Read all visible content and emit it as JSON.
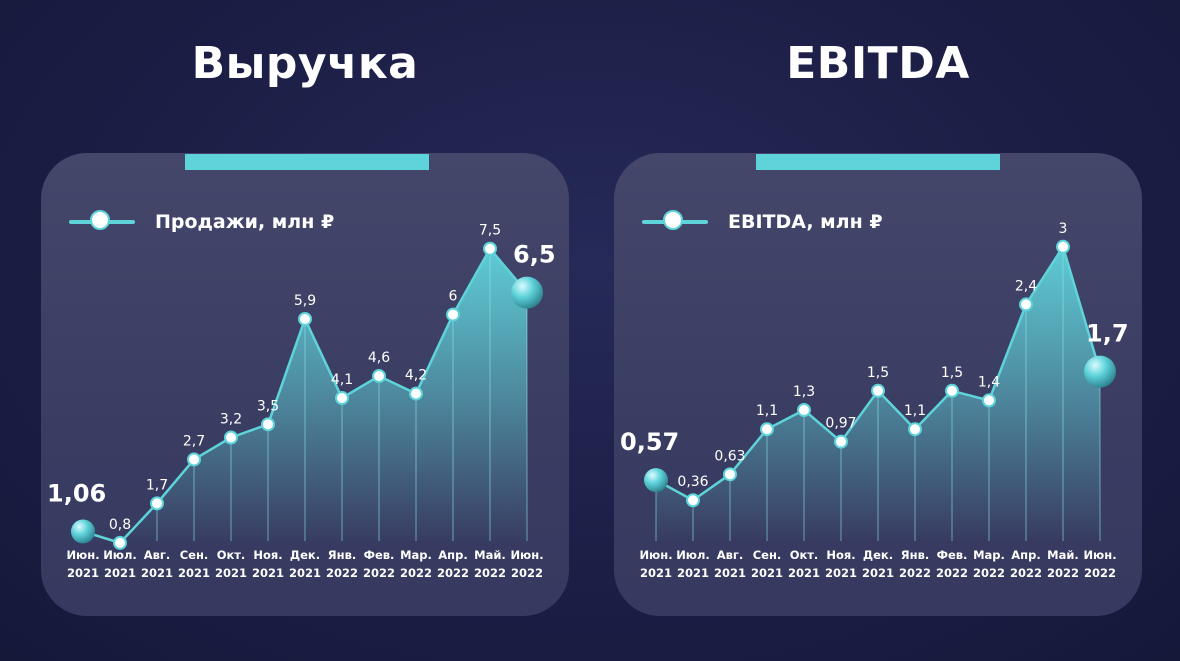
{
  "colors": {
    "background": "#1b1d44",
    "card": "#3e4166",
    "accent": "#5fd3da",
    "line": "#5fd3da",
    "point_fill": "#ffffff",
    "text": "#ffffff"
  },
  "chart_data": [
    {
      "type": "area",
      "title": "Выручка",
      "legend_position": "top-left",
      "grid": false,
      "highlight_first": true,
      "highlight_last": true,
      "categories": [
        "Июн. 2021",
        "Июл. 2021",
        "Авг. 2021",
        "Сен. 2021",
        "Окт. 2021",
        "Ноя. 2021",
        "Дек. 2021",
        "Янв. 2022",
        "Фев. 2022",
        "Мар. 2022",
        "Апр. 2022",
        "Май. 2022",
        "Июн. 2022"
      ],
      "tick_labels": [
        [
          "Июн.",
          "2021"
        ],
        [
          "Июл.",
          "2021"
        ],
        [
          "Авг.",
          "2021"
        ],
        [
          "Сен.",
          "2021"
        ],
        [
          "Окт.",
          "2021"
        ],
        [
          "Ноя.",
          "2021"
        ],
        [
          "Дек.",
          "2021"
        ],
        [
          "Янв.",
          "2022"
        ],
        [
          "Фев.",
          "2022"
        ],
        [
          "Мар.",
          "2022"
        ],
        [
          "Апр.",
          "2022"
        ],
        [
          "Май.",
          "2022"
        ],
        [
          "Июн.",
          "2022"
        ]
      ],
      "series": [
        {
          "name": "Продажи, млн ₽",
          "values": [
            1.06,
            0.8,
            1.7,
            2.7,
            3.2,
            3.5,
            5.9,
            4.1,
            4.6,
            4.2,
            6,
            7.5,
            6.5
          ],
          "labels": [
            "1,06",
            "0,8",
            "1,7",
            "2,7",
            "3,2",
            "3,5",
            "5,9",
            "4,1",
            "4,6",
            "4,2",
            "6",
            "7,5",
            "6,5"
          ]
        }
      ],
      "ylim": [
        0,
        8.2
      ]
    },
    {
      "type": "area",
      "title": "EBITDA",
      "legend_position": "top-left",
      "grid": false,
      "highlight_first": true,
      "highlight_last": true,
      "categories": [
        "Июн. 2021",
        "Июл. 2021",
        "Авг. 2021",
        "Сен. 2021",
        "Окт. 2021",
        "Ноя. 2021",
        "Дек. 2021",
        "Янв. 2022",
        "Фев. 2022",
        "Мар. 2022",
        "Апр. 2022",
        "Май. 2022",
        "Июн. 2022"
      ],
      "tick_labels": [
        [
          "Июн.",
          "2021"
        ],
        [
          "Июл.",
          "2021"
        ],
        [
          "Авг.",
          "2021"
        ],
        [
          "Сен.",
          "2021"
        ],
        [
          "Окт.",
          "2021"
        ],
        [
          "Ноя.",
          "2021"
        ],
        [
          "Дек.",
          "2021"
        ],
        [
          "Янв.",
          "2022"
        ],
        [
          "Фев.",
          "2022"
        ],
        [
          "Мар.",
          "2022"
        ],
        [
          "Апр.",
          "2022"
        ],
        [
          "Май.",
          "2022"
        ],
        [
          "Июн.",
          "2022"
        ]
      ],
      "series": [
        {
          "name": "EBITDA, млн ₽",
          "values": [
            0.57,
            0.36,
            0.63,
            1.1,
            1.3,
            0.97,
            1.5,
            1.1,
            1.5,
            1.4,
            2.4,
            3,
            1.7
          ],
          "labels": [
            "0,57",
            "0,36",
            "0,63",
            "1,1",
            "1,3",
            "0,97",
            "1,5",
            "1,1",
            "1,5",
            "1,4",
            "2,4",
            "3",
            "1,7"
          ]
        }
      ],
      "ylim": [
        -0.45,
        3.3
      ]
    }
  ]
}
